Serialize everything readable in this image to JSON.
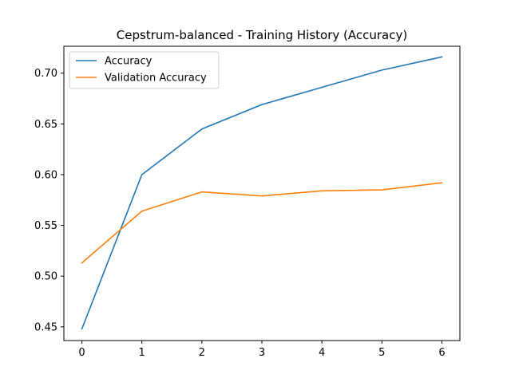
{
  "chart_data": {
    "type": "line",
    "title": "Cepstrum-balanced - Training History (Accuracy)",
    "xlabel": "",
    "ylabel": "",
    "x": [
      0,
      1,
      2,
      3,
      4,
      5,
      6
    ],
    "xlim": [
      -0.3,
      6.3
    ],
    "ylim": [
      0.4365,
      0.7265
    ],
    "xticks": [
      0,
      1,
      2,
      3,
      4,
      5,
      6
    ],
    "xtick_labels": [
      "0",
      "1",
      "2",
      "3",
      "4",
      "5",
      "6"
    ],
    "yticks": [
      0.45,
      0.5,
      0.55,
      0.6,
      0.65,
      0.7
    ],
    "ytick_labels": [
      "0.45",
      "0.50",
      "0.55",
      "0.60",
      "0.65",
      "0.70"
    ],
    "grid": false,
    "legend_position": "upper-left",
    "series": [
      {
        "name": "Accuracy",
        "color": "#1f77b4",
        "values": [
          0.448,
          0.6,
          0.645,
          0.669,
          0.686,
          0.703,
          0.716
        ]
      },
      {
        "name": "Validation Accuracy",
        "color": "#ff7f0e",
        "values": [
          0.513,
          0.564,
          0.583,
          0.579,
          0.584,
          0.585,
          0.592
        ]
      }
    ]
  }
}
